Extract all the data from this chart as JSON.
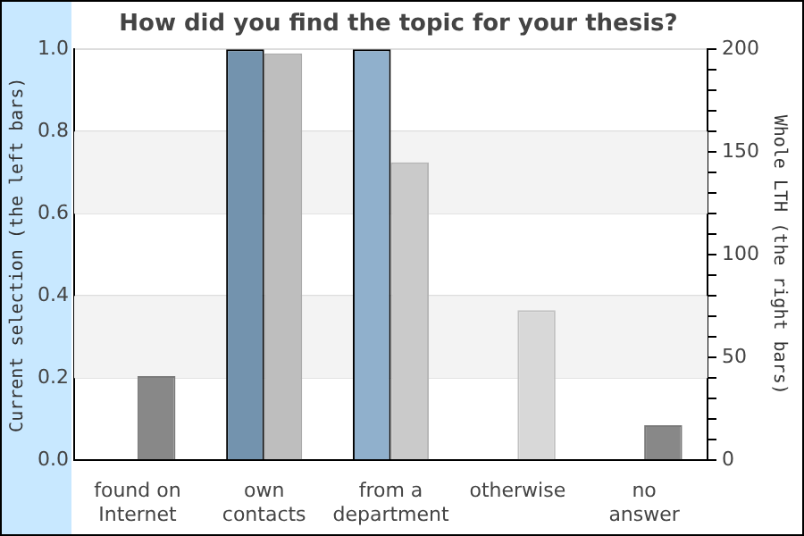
{
  "chart_data": {
    "type": "bar",
    "title": "How did you find the topic for your thesis?",
    "ylabel": "Current selection (the left bars)",
    "y2label": "Whole LTH (the right bars)",
    "categories": [
      "found on\nInternet",
      "own\ncontacts",
      "from a\ndepartment",
      "otherwise",
      "no\nanswer"
    ],
    "series": [
      {
        "colors": [
          "#7393ae",
          "#7393ae",
          "#90b0cc",
          "#90b0cc",
          "#7393ae"
        ],
        "values": [
          0,
          1.0,
          1.0,
          0,
          0
        ]
      },
      {
        "axis": "y2",
        "colors": [
          "#888888",
          "#bebebe",
          "#cacaca",
          "#d8d8d8",
          "#888888"
        ],
        "values": [
          41,
          198,
          145,
          73,
          17
        ]
      }
    ],
    "ylim": [
      0,
      1.0
    ],
    "yticks": [
      {
        "value": 0,
        "label": "0.0"
      },
      0.2,
      0.4,
      0.6,
      0.8,
      {
        "value": 1,
        "label": "1.0"
      }
    ],
    "y2lim": [
      0,
      200
    ],
    "y2ticks": [
      0,
      {
        "value": 10,
        "label": null
      },
      {
        "value": 20,
        "label": null
      },
      {
        "value": 30,
        "label": null
      },
      {
        "value": 40,
        "label": null
      },
      50,
      {
        "value": 60,
        "label": null
      },
      {
        "value": 70,
        "label": null
      },
      {
        "value": 80,
        "label": null
      },
      {
        "value": 90,
        "label": null
      },
      100,
      {
        "value": 110,
        "label": null
      },
      {
        "value": 120,
        "label": null
      },
      {
        "value": 130,
        "label": null
      },
      {
        "value": 140,
        "label": null
      },
      150,
      {
        "value": 160,
        "label": null
      },
      {
        "value": 170,
        "label": null
      },
      {
        "value": 180,
        "label": null
      },
      {
        "value": 190,
        "label": null
      },
      200
    ],
    "bands": [
      {
        "axis": "y",
        "from": 0.2,
        "to": 0.4,
        "color": "#f3f3f3"
      },
      {
        "axis": "y",
        "from": 0.6,
        "to": 0.8,
        "color": "#f3f3f3"
      }
    ],
    "grid": "y",
    "legend": false
  }
}
